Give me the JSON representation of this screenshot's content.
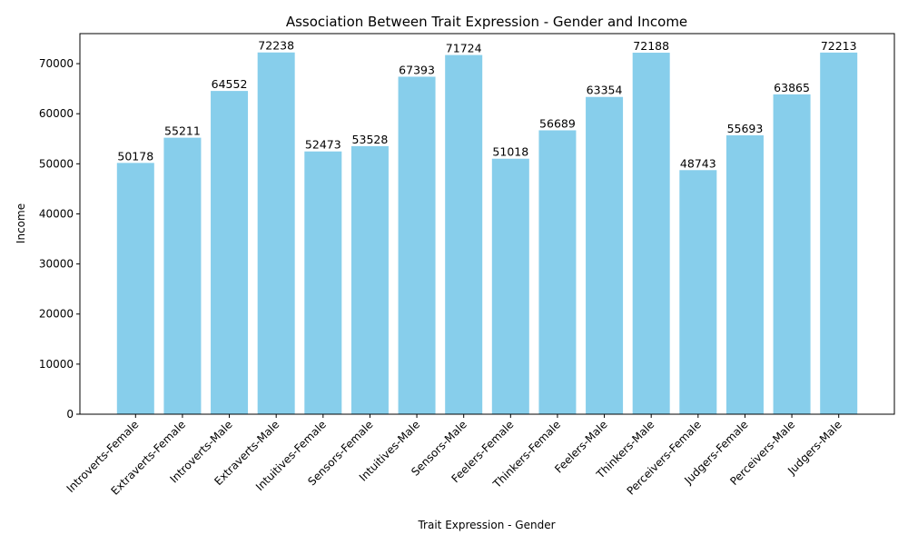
{
  "chart_data": {
    "type": "bar",
    "title": "Association Between Trait Expression - Gender and Income",
    "xlabel": "Trait Expression - Gender",
    "ylabel": "Income",
    "ylim": [
      0,
      76000
    ],
    "yticks": [
      0,
      10000,
      20000,
      30000,
      40000,
      50000,
      60000,
      70000
    ],
    "bar_color": "#87ceeb",
    "grid": false,
    "legend": "none",
    "categories": [
      "Introverts-Female",
      "Extraverts-Female",
      "Introverts-Male",
      "Extraverts-Male",
      "Intuitives-Female",
      "Sensors-Female",
      "Intuitives-Male",
      "Sensors-Male",
      "Feelers-Female",
      "Thinkers-Female",
      "Feelers-Male",
      "Thinkers-Male",
      "Perceivers-Female",
      "Judgers-Female",
      "Perceivers-Male",
      "Judgers-Male"
    ],
    "values": [
      50178,
      55211,
      64552,
      72238,
      52473,
      53528,
      67393,
      71724,
      51018,
      56689,
      63354,
      72188,
      48743,
      55693,
      63865,
      72213
    ]
  }
}
